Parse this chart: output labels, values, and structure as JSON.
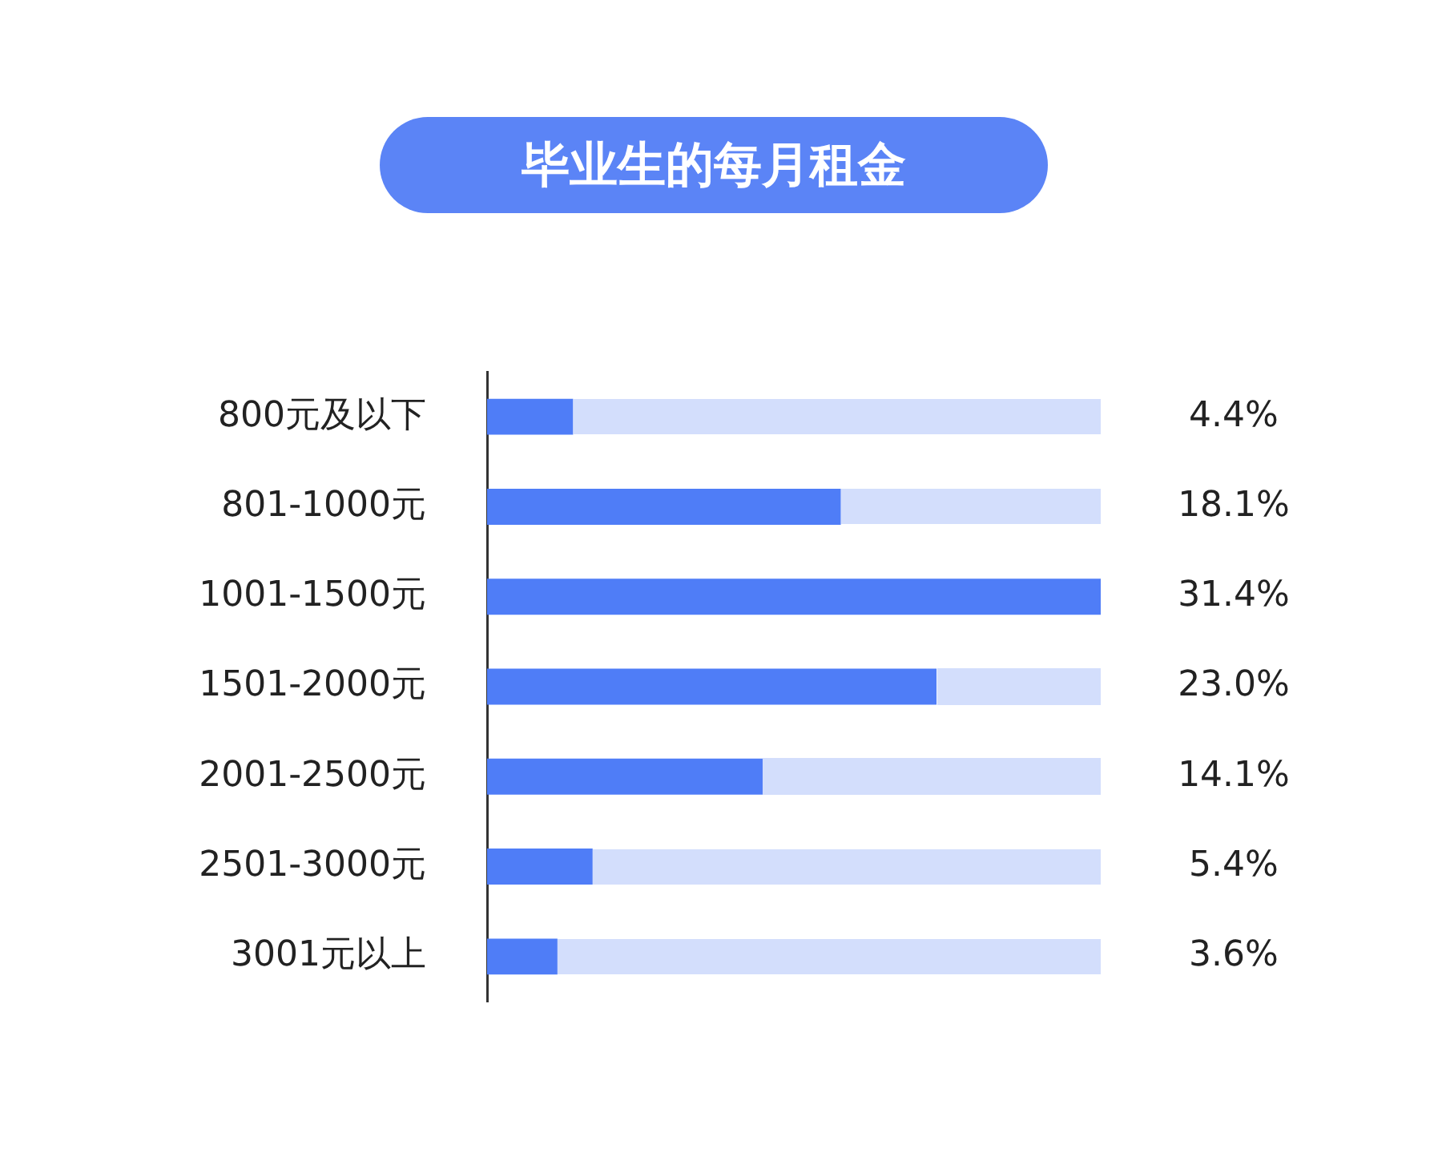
{
  "chart_data": {
    "type": "bar",
    "title": "毕业生的每月租金",
    "orientation": "horizontal",
    "categories": [
      "800元及以下",
      "801-1000元",
      "1001-1500元",
      "1501-2000元",
      "2001-2500元",
      "2501-3000元",
      "3001元以上"
    ],
    "values": [
      4.4,
      18.1,
      31.4,
      23.0,
      14.1,
      5.4,
      3.6
    ],
    "value_labels": [
      "4.4%",
      "18.1%",
      "31.4%",
      "23.0%",
      "14.1%",
      "5.4%",
      "3.6%"
    ],
    "color": "#4f7df7"
  }
}
